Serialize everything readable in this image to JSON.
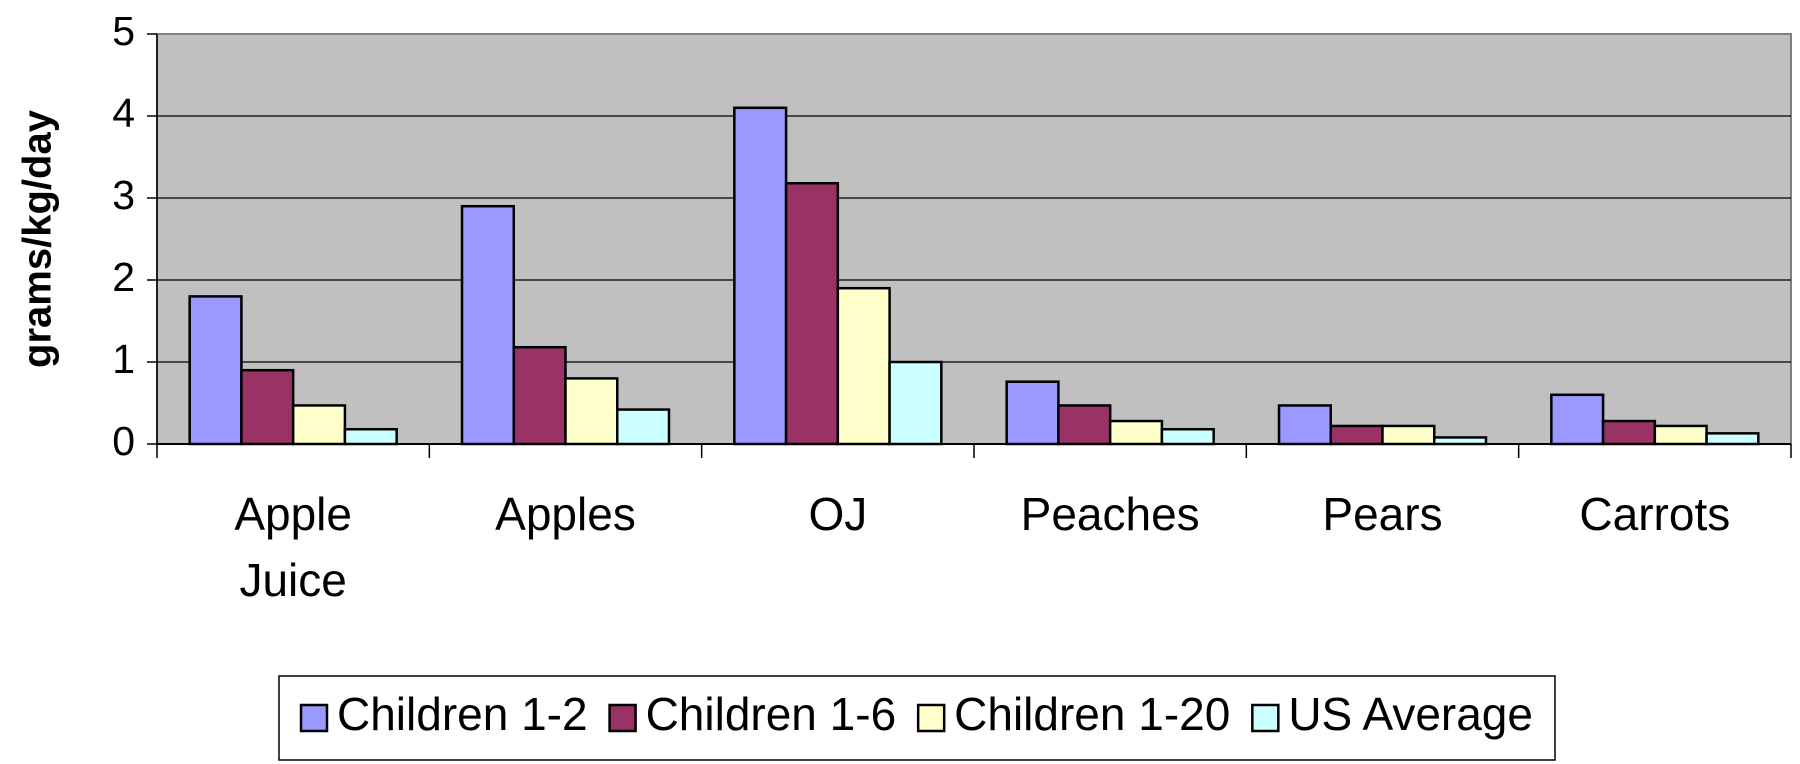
{
  "chart_data": {
    "type": "bar",
    "y_label": "grams/kg/day",
    "categories": [
      "Apple Juice",
      "Apples",
      "OJ",
      "Peaches",
      "Pears",
      "Carrots"
    ],
    "series": [
      {
        "name": "Children 1-2",
        "color": "#9999ff",
        "values": [
          1.8,
          2.9,
          4.1,
          0.76,
          0.47,
          0.6
        ]
      },
      {
        "name": "Children 1-6",
        "color": "#993366",
        "values": [
          0.9,
          1.18,
          3.18,
          0.47,
          0.22,
          0.28
        ]
      },
      {
        "name": "Children 1-20",
        "color": "#ffffcc",
        "values": [
          0.47,
          0.8,
          1.9,
          0.28,
          0.22,
          0.22
        ]
      },
      {
        "name": "US Average",
        "color": "#ccffff",
        "values": [
          0.18,
          0.42,
          1.0,
          0.18,
          0.08,
          0.13
        ]
      }
    ],
    "ylim": [
      0,
      5
    ],
    "yticks": [
      0,
      1,
      2,
      3,
      4,
      5
    ],
    "grid": true,
    "legend": "bottom"
  }
}
